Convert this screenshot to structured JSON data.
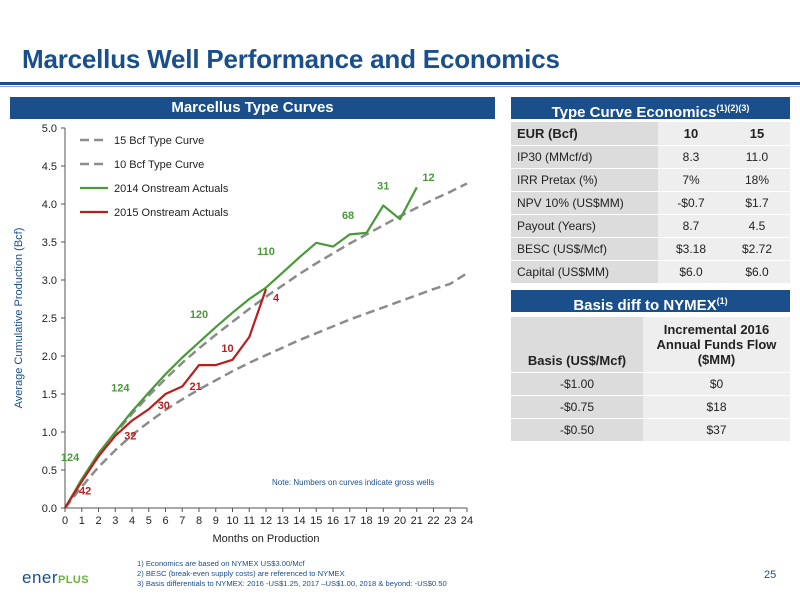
{
  "title": "Marcellus Well Performance and Economics",
  "chart_header": "Marcellus Type Curves",
  "econ": {
    "header": "Type Curve Economics",
    "header_sup": "(1)(2)(3)",
    "columns": [
      "EUR (Bcf)",
      "10",
      "15"
    ],
    "rows": [
      {
        "label": "IP30 (MMcf/d)",
        "v10": "8.3",
        "v15": "11.0"
      },
      {
        "label": "IRR Pretax (%)",
        "v10": "7%",
        "v15": "18%"
      },
      {
        "label": "NPV 10% (US$MM)",
        "v10": "-$0.7",
        "v15": "$1.7"
      },
      {
        "label": "Payout (Years)",
        "v10": "8.7",
        "v15": "4.5"
      },
      {
        "label": "BESC (US$/Mcf)",
        "v10": "$3.18",
        "v15": "$2.72"
      },
      {
        "label": "Capital (US$MM)",
        "v10": "$6.0",
        "v15": "$6.0"
      }
    ]
  },
  "basis": {
    "header": "Basis diff to NYMEX",
    "header_sup": "(1)",
    "columns": [
      "Basis (US$/Mcf)",
      "Incremental 2016 Annual Funds Flow ($MM)"
    ],
    "rows": [
      {
        "basis": "-$1.00",
        "flow": "$0"
      },
      {
        "basis": "-$0.75",
        "flow": "$18"
      },
      {
        "basis": "-$0.50",
        "flow": "$37"
      }
    ]
  },
  "chart_data": {
    "type": "line",
    "title": "",
    "xlabel": "Months on Production",
    "ylabel": "Average Cumulative Production (Bcf)",
    "xlim": [
      0,
      24
    ],
    "ylim": [
      0,
      5
    ],
    "x_ticks": [
      "0",
      "1",
      "2",
      "3",
      "4",
      "5",
      "6",
      "7",
      "8",
      "9",
      "10",
      "11",
      "12",
      "13",
      "14",
      "15",
      "16",
      "17",
      "18",
      "19",
      "20",
      "21",
      "22",
      "23",
      "24"
    ],
    "y_ticks": [
      "0.0",
      "0.5",
      "1.0",
      "1.5",
      "2.0",
      "2.5",
      "3.0",
      "3.5",
      "4.0",
      "4.5",
      "5.0"
    ],
    "grid": false,
    "legend_position": "top-left",
    "note": "Note: Numbers on curves indicate gross wells",
    "series": [
      {
        "name": "15 Bcf Type Curve",
        "style": "dashed",
        "color": "#8c8c8c",
        "x": [
          0,
          1,
          2,
          3,
          4,
          5,
          6,
          7,
          8,
          9,
          10,
          11,
          12,
          13,
          14,
          15,
          16,
          17,
          18,
          19,
          20,
          21,
          22,
          23,
          24
        ],
        "y": [
          0,
          0.36,
          0.68,
          0.98,
          1.24,
          1.48,
          1.7,
          1.91,
          2.1,
          2.28,
          2.45,
          2.62,
          2.78,
          2.93,
          3.08,
          3.22,
          3.35,
          3.48,
          3.6,
          3.72,
          3.84,
          3.95,
          4.06,
          4.16,
          4.27
        ]
      },
      {
        "name": "10 Bcf Type Curve",
        "style": "dashed",
        "color": "#8c8c8c",
        "x": [
          0,
          1,
          2,
          3,
          4,
          5,
          6,
          7,
          8,
          9,
          10,
          11,
          12,
          13,
          14,
          15,
          16,
          17,
          18,
          19,
          20,
          21,
          22,
          23,
          24
        ],
        "y": [
          0,
          0.28,
          0.54,
          0.76,
          0.96,
          1.13,
          1.29,
          1.43,
          1.56,
          1.68,
          1.8,
          1.91,
          2.01,
          2.11,
          2.21,
          2.3,
          2.39,
          2.48,
          2.56,
          2.64,
          2.72,
          2.8,
          2.88,
          2.95,
          3.09
        ]
      },
      {
        "name": "2014 Onstream Actuals",
        "style": "solid",
        "color": "#4a9a3a",
        "x": [
          0,
          1,
          2,
          3,
          4,
          5,
          6,
          7,
          8,
          9,
          10,
          11,
          12,
          13,
          14,
          15,
          16,
          17,
          18,
          19,
          20,
          21
        ],
        "y": [
          0,
          0.38,
          0.72,
          1.0,
          1.27,
          1.52,
          1.76,
          1.98,
          2.18,
          2.38,
          2.57,
          2.75,
          2.9,
          3.1,
          3.3,
          3.49,
          3.44,
          3.6,
          3.62,
          3.98,
          3.8,
          4.22
        ],
        "annotations": [
          {
            "x": 0.3,
            "y": 0.62,
            "text": "124"
          },
          {
            "x": 3.3,
            "y": 1.53,
            "text": "124"
          },
          {
            "x": 8.0,
            "y": 2.5,
            "text": "120"
          },
          {
            "x": 12.0,
            "y": 3.33,
            "text": "110"
          },
          {
            "x": 16.9,
            "y": 3.8,
            "text": "68"
          },
          {
            "x": 19.0,
            "y": 4.19,
            "text": "31"
          },
          {
            "x": 21.7,
            "y": 4.3,
            "text": "12"
          }
        ]
      },
      {
        "name": "2015 Onstream Actuals",
        "style": "solid",
        "color": "#b81f1f",
        "x": [
          0,
          1,
          2,
          3,
          4,
          5,
          6,
          7,
          8,
          9,
          10,
          11,
          12
        ],
        "y": [
          0,
          0.35,
          0.68,
          0.95,
          1.15,
          1.3,
          1.5,
          1.6,
          1.88,
          1.88,
          1.95,
          2.25,
          2.88
        ],
        "annotations": [
          {
            "x": 1.2,
            "y": 0.18,
            "text": "42"
          },
          {
            "x": 3.9,
            "y": 0.9,
            "text": "32"
          },
          {
            "x": 5.9,
            "y": 1.3,
            "text": "30"
          },
          {
            "x": 7.8,
            "y": 1.55,
            "text": "21"
          },
          {
            "x": 9.7,
            "y": 2.05,
            "text": "10"
          },
          {
            "x": 12.6,
            "y": 2.72,
            "text": "4"
          }
        ]
      }
    ]
  },
  "footnotes": [
    "1)   Economics are based on NYMEX US$3.00/Mcf",
    "2)   BESC (break-even supply costs) are referenced to NYMEX",
    "3)   Basis differentials to NYMEX: 2016 -US$1.25, 2017 –US$1.00, 2018 & beyond: -US$0.50"
  ],
  "logo": {
    "text": "ener",
    "plus": "PLUS"
  },
  "page_number": "25"
}
